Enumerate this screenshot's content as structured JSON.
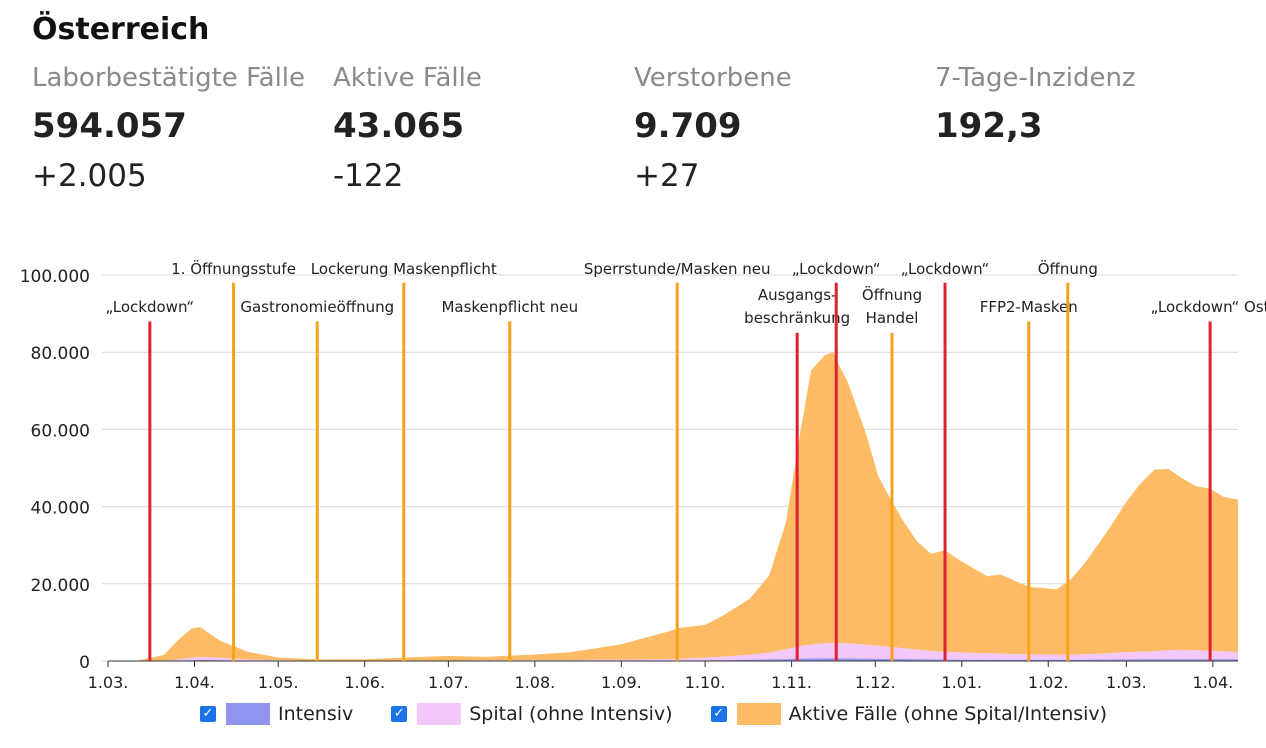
{
  "page": {
    "title": "Österreich"
  },
  "stats": [
    {
      "label": "Laborbestätigte Fälle",
      "value": "594.057",
      "delta": "+2.005"
    },
    {
      "label": "Aktive Fälle",
      "value": "43.065",
      "delta": "-122"
    },
    {
      "label": "Verstorbene",
      "value": "9.709",
      "delta": "+27"
    },
    {
      "label": "7-Tage-Inzidenz",
      "value": "192,3",
      "delta": ""
    }
  ],
  "legend": {
    "intensiv": "Intensiv",
    "spital": "Spital (ohne Intensiv)",
    "aktiv": "Aktive Fälle (ohne Spital/Intensiv)"
  },
  "colors": {
    "intensiv": "#8f94f2",
    "spital": "#f1c8f9",
    "aktiv": "#fdbb65",
    "lockdown": "#e0202f",
    "event": "#f7a21a",
    "grid": "#d9d9d9",
    "checkbox": "#1a73e8"
  },
  "chart_data": {
    "type": "area",
    "stacked": true,
    "xlabel": "",
    "ylabel": "",
    "x_unit": "days since 1 March 2020",
    "x_range": [
      0,
      405
    ],
    "ylim": [
      0,
      100000
    ],
    "y_ticks": [
      0,
      20000,
      40000,
      60000,
      80000,
      100000
    ],
    "y_tick_labels": [
      "0",
      "20.000",
      "40.000",
      "60.000",
      "80.000",
      "100.000"
    ],
    "x_ticks": [
      0,
      31,
      61,
      92,
      122,
      153,
      184,
      214,
      245,
      275,
      306,
      337,
      365,
      396
    ],
    "x_tick_labels": [
      "1.03.",
      "1.04.",
      "1.05.",
      "1.06.",
      "1.07.",
      "1.08.",
      "1.09.",
      "1.10.",
      "1.11.",
      "1.12.",
      "1.01.",
      "1.02.",
      "1.03.",
      "1.04."
    ],
    "x": [
      0,
      10,
      20,
      25,
      30,
      33,
      40,
      50,
      61,
      75,
      92,
      110,
      122,
      135,
      153,
      165,
      175,
      184,
      200,
      205,
      214,
      220,
      230,
      237,
      243,
      248,
      252,
      257,
      260,
      262,
      265,
      268,
      272,
      276,
      280,
      285,
      290,
      295,
      300,
      305,
      310,
      315,
      320,
      330,
      340,
      345,
      350,
      355,
      360,
      365,
      370,
      375,
      380,
      385,
      390,
      395,
      400,
      405
    ],
    "series": [
      {
        "name": "Intensiv",
        "values": [
          0,
          0,
          0,
          100,
          200,
          250,
          220,
          120,
          50,
          30,
          20,
          20,
          30,
          40,
          40,
          40,
          50,
          60,
          80,
          100,
          150,
          200,
          300,
          400,
          500,
          600,
          650,
          700,
          700,
          680,
          650,
          620,
          580,
          550,
          520,
          500,
          450,
          400,
          350,
          320,
          300,
          290,
          300,
          300,
          310,
          320,
          330,
          350,
          380,
          400,
          420,
          440,
          460,
          470,
          470,
          460,
          450,
          440
        ]
      },
      {
        "name": "Spital (ohne Intensiv)",
        "values": [
          0,
          0,
          50,
          300,
          700,
          800,
          600,
          300,
          150,
          80,
          60,
          80,
          100,
          120,
          150,
          200,
          250,
          300,
          400,
          500,
          700,
          900,
          1300,
          1800,
          2500,
          3200,
          3600,
          3900,
          4000,
          3950,
          3900,
          3800,
          3600,
          3400,
          3100,
          2800,
          2500,
          2200,
          2000,
          1900,
          1800,
          1700,
          1600,
          1400,
          1300,
          1300,
          1400,
          1500,
          1700,
          1900,
          2000,
          2100,
          2300,
          2400,
          2300,
          2200,
          2000,
          1900
        ]
      },
      {
        "name": "Aktive Fälle (ohne Spital/Intensiv)",
        "values": [
          0,
          0,
          1500,
          5000,
          7500,
          7750,
          4500,
          2000,
          700,
          300,
          350,
          900,
          1200,
          900,
          1500,
          2000,
          3000,
          4000,
          7000,
          8000,
          8500,
          10500,
          14500,
          20000,
          33000,
          55000,
          71000,
          74700,
          75300,
          72000,
          68000,
          62000,
          54000,
          44000,
          39000,
          33000,
          28000,
          25200,
          26300,
          24000,
          22000,
          20000,
          20500,
          17500,
          17000,
          19500,
          23500,
          28500,
          33500,
          39000,
          43500,
          47000,
          47000,
          44500,
          42500,
          42000,
          40000,
          39500
        ]
      }
    ],
    "annotations": [
      {
        "day": 15,
        "type": "lockdown",
        "label": "„Lockdown“",
        "line_top_value": 88000
      },
      {
        "day": 45,
        "type": "event",
        "label": "1. Öffnungsstufe",
        "line_top_value": 98000
      },
      {
        "day": 75,
        "type": "event",
        "label": "Gastronomieöffnung",
        "line_top_value": 88000
      },
      {
        "day": 106,
        "type": "event",
        "label": "Lockerung Maskenpflicht",
        "line_top_value": 98000
      },
      {
        "day": 144,
        "type": "event",
        "label": "Maskenpflicht neu",
        "line_top_value": 88000
      },
      {
        "day": 204,
        "type": "event",
        "label": "Sperrstunde/Masken neu",
        "line_top_value": 98000
      },
      {
        "day": 247,
        "type": "lockdown",
        "label": "Ausgangs- beschränkung",
        "label_lines": [
          "Ausgangs-",
          "beschränkung"
        ],
        "line_top_value": 85000
      },
      {
        "day": 261,
        "type": "lockdown",
        "label": "„Lockdown“",
        "line_top_value": 98000
      },
      {
        "day": 281,
        "type": "event",
        "label": "Öffnung Handel",
        "label_lines": [
          "Öffnung",
          "Handel"
        ],
        "line_top_value": 85000
      },
      {
        "day": 300,
        "type": "lockdown",
        "label": "„Lockdown“",
        "line_top_value": 98000
      },
      {
        "day": 330,
        "type": "event",
        "label": "FFP2-Masken",
        "line_top_value": 88000
      },
      {
        "day": 344,
        "type": "event",
        "label": "Öffnung",
        "line_top_value": 98000
      },
      {
        "day": 395,
        "type": "lockdown",
        "label": "„Lockdown“ Ost",
        "line_top_value": 88000
      }
    ]
  }
}
